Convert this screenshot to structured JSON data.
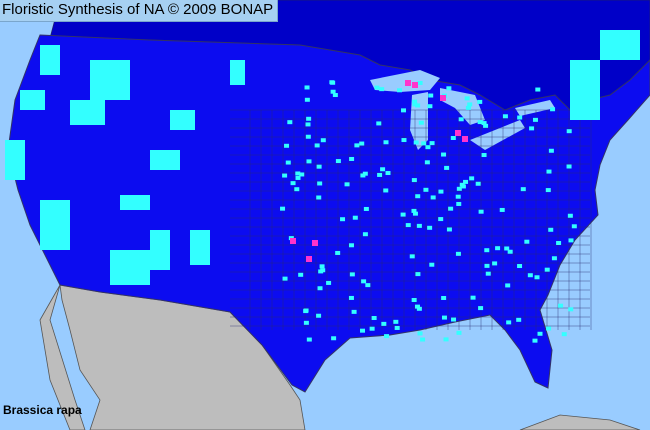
{
  "header": {
    "title": "Floristic Synthesis of NA © 2009 BONAP"
  },
  "map": {
    "species": "Brassica rapa",
    "colors": {
      "ocean": "#99ccff",
      "canada": "#0000c8",
      "us_counties": "#0c0cf0",
      "county_border": "#333366",
      "mexico": "#bdbdbd",
      "cyan_counties": "#33ffff",
      "magenta_counties": "#ff33cc"
    }
  }
}
